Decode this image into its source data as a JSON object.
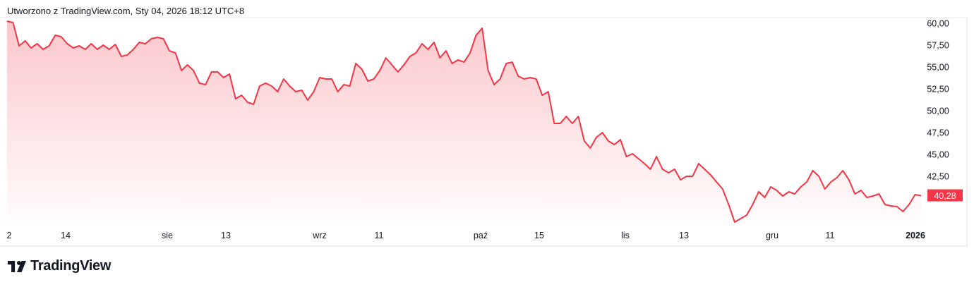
{
  "caption": "Utworzono z TradingView.com, Sty 04, 2026 18:12 UTC+8",
  "logo_text": "TradingView",
  "colors": {
    "line": "#F23645",
    "price_label_bg": "#F23645",
    "text": "#131722"
  },
  "chart_data": {
    "type": "area",
    "ylim": [
      36.5,
      60.5
    ],
    "y_ticks": [
      "60,00",
      "57,50",
      "55,00",
      "52,50",
      "50,00",
      "47,50",
      "45,00",
      "42,50"
    ],
    "y_tick_values": [
      60,
      57.5,
      55,
      52.5,
      50,
      47.5,
      45,
      42.5
    ],
    "x_ticks": [
      {
        "label": "2",
        "bold": false
      },
      {
        "label": "14",
        "bold": false
      },
      {
        "label": "sie",
        "bold": false
      },
      {
        "label": "13",
        "bold": false
      },
      {
        "label": "wrz",
        "bold": false
      },
      {
        "label": "11",
        "bold": false
      },
      {
        "label": "paź",
        "bold": false
      },
      {
        "label": "15",
        "bold": false
      },
      {
        "label": "lis",
        "bold": false
      },
      {
        "label": "13",
        "bold": false
      },
      {
        "label": "gru",
        "bold": false
      },
      {
        "label": "11",
        "bold": false
      },
      {
        "label": "2026",
        "bold": true
      }
    ],
    "last_price_label": "40,28",
    "last_price": 40.28,
    "values": [
      60.24,
      60.08,
      57.42,
      57.98,
      57.18,
      57.66,
      57.02,
      57.42,
      58.63,
      58.47,
      57.66,
      57.18,
      57.42,
      57.02,
      57.66,
      57.02,
      57.5,
      57.02,
      57.58,
      56.21,
      56.37,
      57.02,
      57.82,
      57.66,
      58.23,
      58.39,
      58.23,
      56.85,
      56.61,
      54.6,
      55.24,
      54.6,
      53.15,
      52.98,
      54.44,
      54.44,
      53.79,
      54.19,
      51.37,
      51.77,
      50.97,
      50.73,
      52.82,
      53.15,
      52.82,
      52.18,
      53.63,
      52.82,
      52.18,
      52.34,
      51.21,
      52.18,
      53.79,
      53.63,
      53.63,
      52.18,
      52.98,
      52.82,
      55.4,
      54.76,
      53.39,
      53.63,
      54.6,
      56.05,
      55.24,
      54.44,
      55.24,
      56.21,
      56.61,
      57.66,
      57.02,
      57.82,
      56.05,
      56.85,
      55.4,
      55.81,
      55.56,
      56.61,
      58.63,
      59.44,
      54.6,
      52.98,
      53.63,
      55.4,
      55.56,
      53.95,
      53.63,
      53.79,
      53.63,
      51.77,
      52.18,
      48.55,
      48.55,
      49.35,
      48.55,
      49.35,
      46.53,
      45.73,
      46.94,
      47.5,
      46.53,
      46.13,
      46.69,
      44.76,
      45.08,
      44.52,
      43.95,
      43.31,
      44.76,
      43.31,
      42.9,
      43.31,
      42.1,
      42.5,
      42.5,
      43.95,
      43.31,
      42.66,
      41.85,
      41.05,
      39.27,
      37.26,
      37.66,
      38.06,
      39.27,
      40.73,
      40.08,
      41.29,
      40.89,
      40.24,
      40.73,
      40.48,
      41.29,
      41.85,
      43.15,
      42.5,
      41.05,
      41.85,
      42.34,
      43.15,
      42.1,
      40.48,
      40.89,
      40.08,
      40.24,
      40.48,
      39.27,
      39.11,
      39.03,
      38.47,
      39.27,
      40.4,
      40.28
    ]
  }
}
